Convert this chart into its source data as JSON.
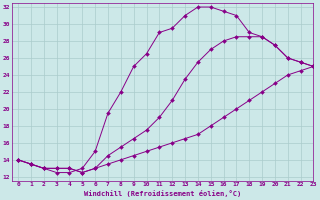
{
  "xlabel": "Windchill (Refroidissement éolien,°C)",
  "ylim": [
    11.5,
    32.5
  ],
  "xlim": [
    -0.5,
    23
  ],
  "yticks": [
    12,
    14,
    16,
    18,
    20,
    22,
    24,
    26,
    28,
    30,
    32
  ],
  "xticks": [
    0,
    1,
    2,
    3,
    4,
    5,
    6,
    7,
    8,
    9,
    10,
    11,
    12,
    13,
    14,
    15,
    16,
    17,
    18,
    19,
    20,
    21,
    22,
    23
  ],
  "bg_color": "#cce8e8",
  "grid_color": "#aacccc",
  "line_color": "#880088",
  "curve1_x": [
    0,
    1,
    2,
    3,
    4,
    5,
    6,
    7,
    8,
    9,
    10,
    11,
    12,
    13,
    14,
    15,
    16,
    17,
    18,
    19,
    20,
    21,
    22,
    23
  ],
  "curve1_y": [
    14.0,
    13.5,
    13.0,
    12.5,
    12.5,
    13.0,
    15.0,
    19.5,
    22.0,
    25.0,
    26.5,
    29.0,
    29.5,
    31.0,
    32.0,
    32.0,
    31.5,
    31.0,
    29.0,
    28.5,
    27.5,
    26.0,
    25.5,
    25.0
  ],
  "curve2_x": [
    0,
    1,
    2,
    3,
    4,
    5,
    6,
    7,
    8,
    9,
    10,
    11,
    12,
    13,
    14,
    15,
    16,
    17,
    18,
    19,
    20,
    21,
    22,
    23
  ],
  "curve2_y": [
    14.0,
    13.5,
    13.0,
    13.0,
    13.0,
    12.5,
    13.0,
    13.5,
    14.0,
    14.5,
    15.0,
    15.5,
    16.0,
    16.5,
    17.0,
    18.0,
    19.0,
    20.0,
    21.0,
    22.0,
    23.0,
    24.0,
    24.5,
    25.0
  ],
  "curve3_x": [
    0,
    1,
    2,
    3,
    4,
    5,
    6,
    7,
    8,
    9,
    10,
    11,
    12,
    13,
    14,
    15,
    16,
    17,
    18,
    19,
    20,
    21,
    22,
    23
  ],
  "curve3_y": [
    14.0,
    13.5,
    13.0,
    13.0,
    13.0,
    12.5,
    13.0,
    14.5,
    15.5,
    16.5,
    17.5,
    19.0,
    21.0,
    23.5,
    25.5,
    27.0,
    28.0,
    28.5,
    28.5,
    28.5,
    27.5,
    26.0,
    25.5,
    25.0
  ]
}
